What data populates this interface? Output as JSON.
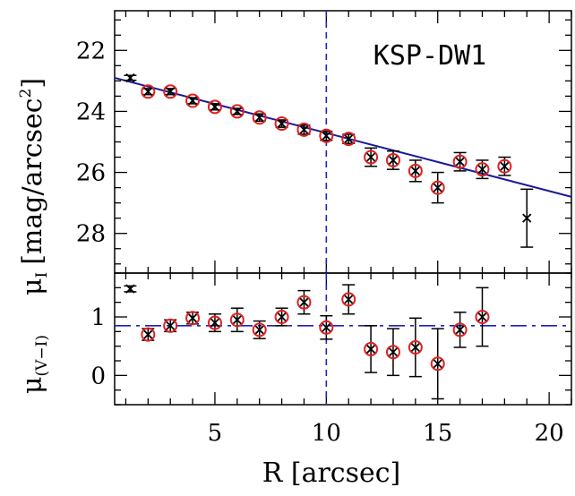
{
  "chart_data": [
    {
      "type": "scatter",
      "panel": "top",
      "annotation": "KSP-DW1",
      "ylabel_main": "μ",
      "ylabel_sub": "I",
      "ylabel_rest": "[mag/arcsec",
      "ylabel_sup": "2",
      "ylabel_end": "]",
      "xlim": [
        0.5,
        21
      ],
      "ylim": [
        29.3,
        20.7
      ],
      "y_inverted": true,
      "yticks": [
        22,
        24,
        26,
        28
      ],
      "vline_x": 10,
      "fit_line": {
        "x": [
          0.5,
          21
        ],
        "y": [
          22.9,
          26.8
        ]
      },
      "points": [
        {
          "x": 1.2,
          "y": 22.9,
          "err": 0.08,
          "circled": false
        },
        {
          "x": 2,
          "y": 23.35,
          "err": 0.1,
          "circled": true
        },
        {
          "x": 3,
          "y": 23.35,
          "err": 0.1,
          "circled": true
        },
        {
          "x": 4,
          "y": 23.65,
          "err": 0.1,
          "circled": true
        },
        {
          "x": 5,
          "y": 23.85,
          "err": 0.1,
          "circled": true
        },
        {
          "x": 6,
          "y": 24.0,
          "err": 0.1,
          "circled": true
        },
        {
          "x": 7,
          "y": 24.2,
          "err": 0.12,
          "circled": true
        },
        {
          "x": 8,
          "y": 24.4,
          "err": 0.12,
          "circled": true
        },
        {
          "x": 9,
          "y": 24.6,
          "err": 0.15,
          "circled": true
        },
        {
          "x": 10,
          "y": 24.8,
          "err": 0.15,
          "circled": true
        },
        {
          "x": 11,
          "y": 24.9,
          "err": 0.15,
          "circled": true
        },
        {
          "x": 12,
          "y": 25.5,
          "err": 0.3,
          "circled": true
        },
        {
          "x": 13,
          "y": 25.6,
          "err": 0.3,
          "circled": true
        },
        {
          "x": 14,
          "y": 25.95,
          "err": 0.35,
          "circled": true
        },
        {
          "x": 15,
          "y": 26.5,
          "err": 0.5,
          "circled": true
        },
        {
          "x": 16,
          "y": 25.65,
          "err": 0.3,
          "circled": true
        },
        {
          "x": 17,
          "y": 25.9,
          "err": 0.3,
          "circled": true
        },
        {
          "x": 18,
          "y": 25.8,
          "err": 0.3,
          "circled": true
        },
        {
          "x": 19,
          "y": 27.5,
          "err": 0.95,
          "circled": false
        }
      ]
    },
    {
      "type": "scatter",
      "panel": "bottom",
      "xlabel": "R [arcsec]",
      "ylabel_main": "μ",
      "ylabel_sub": "(V−I)",
      "xlim": [
        0.5,
        21
      ],
      "ylim": [
        -0.5,
        1.75
      ],
      "xticks": [
        5,
        10,
        15,
        20
      ],
      "yticks": [
        0,
        1
      ],
      "vline_x": 10,
      "hline_y": 0.85,
      "points": [
        {
          "x": 1.2,
          "y": 1.48,
          "err": 0.05,
          "circled": false
        },
        {
          "x": 2,
          "y": 0.7,
          "err": 0.1,
          "circled": true
        },
        {
          "x": 3,
          "y": 0.85,
          "err": 0.1,
          "circled": true
        },
        {
          "x": 4,
          "y": 0.98,
          "err": 0.1,
          "circled": true
        },
        {
          "x": 5,
          "y": 0.9,
          "err": 0.15,
          "circled": true
        },
        {
          "x": 6,
          "y": 0.95,
          "err": 0.2,
          "circled": true
        },
        {
          "x": 7,
          "y": 0.78,
          "err": 0.15,
          "circled": true
        },
        {
          "x": 8,
          "y": 1.0,
          "err": 0.15,
          "circled": true
        },
        {
          "x": 9,
          "y": 1.25,
          "err": 0.2,
          "circled": true
        },
        {
          "x": 10,
          "y": 0.82,
          "err": 0.2,
          "circled": true
        },
        {
          "x": 11,
          "y": 1.3,
          "err": 0.25,
          "circled": true
        },
        {
          "x": 12,
          "y": 0.45,
          "err": 0.4,
          "circled": true
        },
        {
          "x": 13,
          "y": 0.4,
          "err": 0.4,
          "circled": true
        },
        {
          "x": 14,
          "y": 0.48,
          "err": 0.5,
          "circled": true
        },
        {
          "x": 15,
          "y": 0.2,
          "err": 0.6,
          "circled": true
        },
        {
          "x": 16,
          "y": 0.78,
          "err": 0.3,
          "circled": true
        },
        {
          "x": 17,
          "y": 1.0,
          "err": 0.5,
          "circled": true
        }
      ]
    }
  ]
}
